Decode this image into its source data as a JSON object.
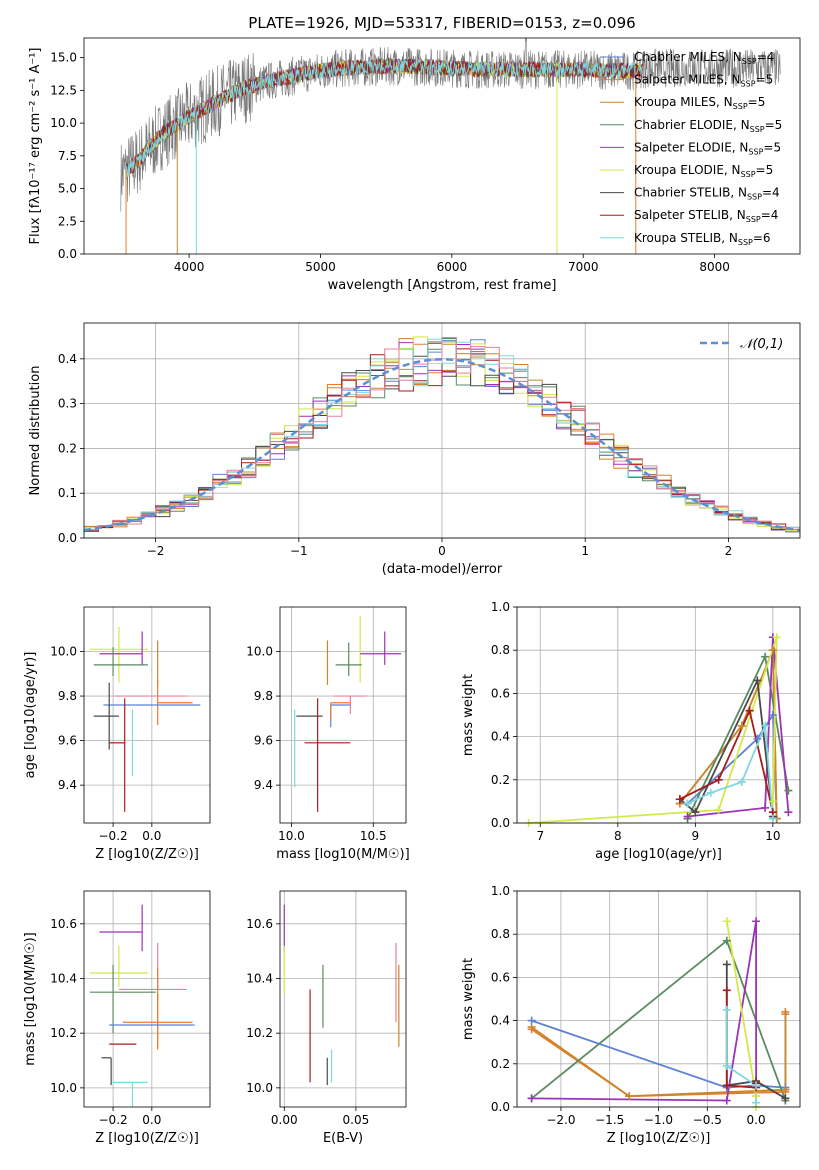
{
  "figure_title": "PLATE=1926, MJD=53317, FIBERID=0153, z=0.096",
  "colors": {
    "Chabrier MILES": "#5b82d8",
    "Salpeter MILES": "#ec7a2b",
    "Kroupa MILES": "#c8862e",
    "Chabrier ELODIE": "#5a8a60",
    "Salpeter ELODIE": "#9b34b6",
    "Kroupa ELODIE": "#d4e84a",
    "Chabrier STELIB": "#4a4a4a",
    "Salpeter STELIB": "#a61c1c",
    "Kroupa STELIB": "#7fd8e0",
    "Salpeter STELIB hist": "#e8809a",
    "normal_curve": "#5b8fd6"
  },
  "chart_data": [
    {
      "id": "spectrum",
      "type": "line",
      "title": "PLATE=1926, MJD=53317, FIBERID=0153, z=0.096",
      "xlabel": "wavelength [Angstrom, rest frame]",
      "ylabel": "Flux [fλ10⁻¹⁷ erg cm⁻² s⁻¹ A⁻¹]",
      "xlim": [
        3200,
        8650
      ],
      "ylim": [
        0,
        16.5
      ],
      "xticks": [
        4000,
        5000,
        6000,
        7000,
        8000
      ],
      "yticks": [
        0.0,
        2.5,
        5.0,
        7.5,
        10.0,
        12.5,
        15.0
      ],
      "legend_position": "right",
      "legend": [
        "Chabrier MILES, NSSP=4",
        "Salpeter MILES, NSSP=5",
        "Kroupa MILES, NSSP=5",
        "Chabrier ELODIE, NSSP=5",
        "Salpeter ELODIE, NSSP=5",
        "Kroupa ELODIE, NSSP=5",
        "Chabrier STELIB, NSSP=4",
        "Salpeter STELIB, NSSP=4",
        "Kroupa STELIB, NSSP=6"
      ],
      "continuum": {
        "x": [
          3480,
          3600,
          3800,
          4000,
          4200,
          4400,
          4600,
          4800,
          5000,
          5200,
          5400,
          5600,
          5800,
          6000,
          6200,
          6400,
          6600,
          6800,
          7000,
          7200,
          7400,
          7500
        ],
        "y": [
          6.0,
          7.0,
          9.2,
          10.5,
          11.6,
          12.6,
          13.2,
          13.6,
          14.0,
          14.2,
          14.3,
          14.35,
          14.3,
          14.2,
          14.1,
          14.1,
          14.1,
          14.1,
          14.1,
          14.0,
          14.0,
          14.2
        ]
      },
      "data_x_range": [
        3480,
        8500
      ],
      "model_x_range": [
        3520,
        7450
      ],
      "grid": false
    },
    {
      "id": "residuals",
      "type": "histogram",
      "xlabel": "(data-model)/error",
      "ylabel": "Normed distribution",
      "xlim": [
        -2.5,
        2.5
      ],
      "ylim": [
        0,
        0.48
      ],
      "xticks": [
        -2,
        -1,
        0,
        1,
        2
      ],
      "yticks": [
        0.0,
        0.1,
        0.2,
        0.3,
        0.4
      ],
      "bin_width": 0.1,
      "legend": [
        "𝒩(0,1)"
      ],
      "legend_position": "top-right",
      "grid": true
    },
    {
      "id": "age_vs_Z",
      "type": "scatter",
      "xlabel": "Z [log10(Z/Z☉)]",
      "ylabel": "age  [log10(age/yr)]",
      "xlim": [
        -0.35,
        0.3
      ],
      "ylim": [
        9.23,
        10.2
      ],
      "xticks": [
        -0.2,
        0.0
      ],
      "yticks": [
        9.4,
        9.6,
        9.8,
        10.0
      ],
      "grid": true,
      "points": [
        {
          "series": "Kroupa ELODIE",
          "x": -0.17,
          "y": 10.01,
          "xerr": [
            0.15,
            0.15
          ],
          "yerr": [
            0.15,
            0.1
          ]
        },
        {
          "series": "Salpeter ELODIE",
          "x": -0.05,
          "y": 9.99,
          "xerr": [
            0.22,
            0.0
          ],
          "yerr": [
            0.05,
            0.1
          ]
        },
        {
          "series": "Chabrier ELODIE",
          "x": -0.2,
          "y": 9.94,
          "xerr": [
            0.1,
            0.18
          ],
          "yerr": [
            0.05,
            0.08
          ]
        },
        {
          "series": "Kroupa MILES",
          "x": 0.03,
          "y": 9.95,
          "xerr": [
            0.0,
            0.0
          ],
          "yerr": [
            0.1,
            0.1
          ]
        },
        {
          "series": "Salpeter MILES",
          "x": 0.03,
          "y": 9.77,
          "xerr": [
            0.0,
            0.18
          ],
          "yerr": [
            0.1,
            0.1
          ]
        },
        {
          "series": "Salpeter STELIB hist",
          "x": 0.03,
          "y": 9.8,
          "xerr": [
            0.22,
            0.15
          ],
          "yerr": [
            0.0,
            0.0
          ]
        },
        {
          "series": "Chabrier MILES",
          "x": 0.0,
          "y": 9.76,
          "xerr": [
            0.25,
            0.25
          ],
          "yerr": [
            0.0,
            0.0
          ]
        },
        {
          "series": "Chabrier STELIB",
          "x": -0.22,
          "y": 9.71,
          "xerr": [
            0.08,
            0.05
          ],
          "yerr": [
            0.15,
            0.15
          ]
        },
        {
          "series": "Kroupa STELIB",
          "x": -0.1,
          "y": 9.59,
          "xerr": [
            0.0,
            0.0
          ],
          "yerr": [
            0.15,
            0.15
          ]
        },
        {
          "series": "Salpeter STELIB",
          "x": -0.14,
          "y": 9.59,
          "xerr": [
            0.08,
            0.0
          ],
          "yerr": [
            0.31,
            0.2
          ]
        }
      ]
    },
    {
      "id": "age_vs_mass",
      "type": "scatter",
      "xlabel": "mass [log10(M/M☉)]",
      "ylabel": "",
      "xlim": [
        9.93,
        10.7
      ],
      "ylim": [
        9.23,
        10.2
      ],
      "xticks": [
        10.0,
        10.5
      ],
      "yticks": [
        9.4,
        9.6,
        9.8,
        10.0
      ],
      "grid": true,
      "points": [
        {
          "series": "Kroupa ELODIE",
          "x": 10.42,
          "y": 10.01,
          "xerr": [
            0.0,
            0.0
          ],
          "yerr": [
            0.15,
            0.15
          ]
        },
        {
          "series": "Salpeter ELODIE",
          "x": 10.57,
          "y": 9.99,
          "xerr": [
            0.15,
            0.1
          ],
          "yerr": [
            0.05,
            0.1
          ]
        },
        {
          "series": "Chabrier ELODIE",
          "x": 10.35,
          "y": 9.94,
          "xerr": [
            0.08,
            0.08
          ],
          "yerr": [
            0.05,
            0.1
          ]
        },
        {
          "series": "Kroupa MILES",
          "x": 10.22,
          "y": 9.95,
          "xerr": [
            0.0,
            0.0
          ],
          "yerr": [
            0.1,
            0.1
          ]
        },
        {
          "series": "Salpeter STELIB hist",
          "x": 10.36,
          "y": 9.8,
          "xerr": [
            0.1,
            0.1
          ],
          "yerr": [
            0.08,
            0.0
          ]
        },
        {
          "series": "Chabrier MILES",
          "x": 10.24,
          "y": 9.76,
          "xerr": [
            0.0,
            0.12
          ],
          "yerr": [
            0.1,
            0.0
          ]
        },
        {
          "series": "Salpeter MILES",
          "x": 10.24,
          "y": 9.77,
          "xerr": [
            0.0,
            0.12
          ],
          "yerr": [
            0.08,
            0.0
          ]
        },
        {
          "series": "Chabrier STELIB",
          "x": 10.11,
          "y": 9.71,
          "xerr": [
            0.08,
            0.08
          ],
          "yerr": [
            0.0,
            0.0
          ]
        },
        {
          "series": "Kroupa STELIB",
          "x": 10.02,
          "y": 9.59,
          "xerr": [
            0.0,
            0.0
          ],
          "yerr": [
            0.2,
            0.15
          ]
        },
        {
          "series": "Salpeter STELIB",
          "x": 10.16,
          "y": 9.59,
          "xerr": [
            0.08,
            0.2
          ],
          "yerr": [
            0.31,
            0.2
          ]
        }
      ]
    },
    {
      "id": "weight_vs_age",
      "type": "line",
      "xlabel": "age  [log10(age/yr)]",
      "ylabel": "mass weight",
      "xlim": [
        6.7,
        10.35
      ],
      "ylim": [
        0,
        1.0
      ],
      "xticks": [
        7,
        8,
        9,
        10
      ],
      "yticks": [
        0.0,
        0.2,
        0.4,
        0.6,
        0.8,
        1.0
      ],
      "grid": true,
      "series": [
        {
          "series": "Chabrier MILES",
          "x": [
            8.9,
            9.8,
            10.0,
            10.05
          ],
          "y": [
            0.09,
            0.39,
            0.5,
            0.02
          ]
        },
        {
          "series": "Salpeter MILES",
          "x": [
            8.8,
            9.6,
            10.0,
            10.05
          ],
          "y": [
            0.09,
            0.45,
            0.8,
            0.02
          ]
        },
        {
          "series": "Kroupa MILES",
          "x": [
            8.8,
            9.6,
            10.0,
            10.05
          ],
          "y": [
            0.09,
            0.45,
            0.8,
            0.02
          ]
        },
        {
          "series": "Chabrier ELODIE",
          "x": [
            8.9,
            9.9,
            10.2
          ],
          "y": [
            0.02,
            0.77,
            0.15
          ]
        },
        {
          "series": "Salpeter ELODIE",
          "x": [
            8.9,
            9.9,
            10.0,
            10.2
          ],
          "y": [
            0.03,
            0.07,
            0.86,
            0.05
          ]
        },
        {
          "series": "Kroupa ELODIE",
          "x": [
            6.85,
            9.3,
            10.05,
            10.0
          ],
          "y": [
            0.0,
            0.06,
            0.86,
            0.1
          ]
        },
        {
          "series": "Chabrier STELIB",
          "x": [
            8.8,
            9.0,
            9.8,
            10.0
          ],
          "y": [
            0.11,
            0.05,
            0.66,
            0.03
          ]
        },
        {
          "series": "Salpeter STELIB",
          "x": [
            8.8,
            9.3,
            9.7,
            10.0
          ],
          "y": [
            0.11,
            0.2,
            0.52,
            0.05
          ]
        },
        {
          "series": "Kroupa STELIB",
          "x": [
            8.9,
            9.2,
            9.6,
            9.9,
            10.0
          ],
          "y": [
            0.09,
            0.14,
            0.19,
            0.45,
            0.02
          ]
        }
      ]
    },
    {
      "id": "mass_vs_Z",
      "type": "scatter",
      "xlabel": "Z [log10(Z/Z☉)]",
      "ylabel": "mass [log10(M/M☉)]",
      "xlim": [
        -0.35,
        0.3
      ],
      "ylim": [
        9.93,
        10.72
      ],
      "xticks": [
        -0.2,
        0.0
      ],
      "yticks": [
        10.0,
        10.2,
        10.4,
        10.6
      ],
      "grid": true,
      "points": [
        {
          "series": "Salpeter ELODIE",
          "x": -0.05,
          "y": 10.57,
          "xerr": [
            0.22,
            0.0
          ],
          "yerr": [
            0.07,
            0.1
          ]
        },
        {
          "series": "Salpeter STELIB hist",
          "x": 0.03,
          "y": 10.36,
          "xerr": [
            0.2,
            0.15
          ],
          "yerr": [
            0.0,
            0.17
          ]
        },
        {
          "series": "Kroupa ELODIE",
          "x": -0.17,
          "y": 10.42,
          "xerr": [
            0.15,
            0.15
          ],
          "yerr": [
            0.05,
            0.1
          ]
        },
        {
          "series": "Chabrier ELODIE",
          "x": -0.2,
          "y": 10.35,
          "xerr": [
            0.12,
            0.22
          ],
          "yerr": [
            0.15,
            0.1
          ]
        },
        {
          "series": "Kroupa MILES",
          "x": 0.03,
          "y": 10.35,
          "xerr": [
            0.0,
            0.0
          ],
          "yerr": [
            0.2,
            0.0
          ]
        },
        {
          "series": "Salpeter MILES",
          "x": 0.03,
          "y": 10.24,
          "xerr": [
            0.18,
            0.18
          ],
          "yerr": [
            0.1,
            0.2
          ]
        },
        {
          "series": "Chabrier MILES",
          "x": 0.0,
          "y": 10.23,
          "xerr": [
            0.22,
            0.22
          ],
          "yerr": [
            0.0,
            0.0
          ]
        },
        {
          "series": "Salpeter STELIB",
          "x": -0.14,
          "y": 10.16,
          "xerr": [
            0.08,
            0.06
          ],
          "yerr": [
            0.0,
            0.0
          ]
        },
        {
          "series": "Chabrier STELIB",
          "x": -0.21,
          "y": 10.11,
          "xerr": [
            0.05,
            0.0
          ],
          "yerr": [
            0.1,
            0.0
          ]
        },
        {
          "series": "Kroupa STELIB",
          "x": -0.1,
          "y": 10.02,
          "xerr": [
            0.1,
            0.08
          ],
          "yerr": [
            0.2,
            0.0
          ]
        }
      ]
    },
    {
      "id": "mass_vs_EBV",
      "type": "scatter",
      "xlabel": "E(B-V)",
      "ylabel": "",
      "xlim": [
        -0.003,
        0.085
      ],
      "ylim": [
        9.93,
        10.72
      ],
      "xticks": [
        0.0,
        0.05
      ],
      "yticks": [
        10.0,
        10.2,
        10.4,
        10.6
      ],
      "grid": true,
      "points": [
        {
          "series": "Salpeter ELODIE",
          "x": 0.0,
          "y": 10.57,
          "xerr": [
            0.0,
            0.0
          ],
          "yerr": [
            0.07,
            0.1
          ]
        },
        {
          "series": "Kroupa ELODIE",
          "x": 0.0,
          "y": 10.42,
          "xerr": [
            0.0,
            0.0
          ],
          "yerr": [
            0.08,
            0.1
          ]
        },
        {
          "series": "Salpeter STELIB hist",
          "x": 0.078,
          "y": 10.36,
          "xerr": [
            0.0,
            0.0
          ],
          "yerr": [
            0.12,
            0.17
          ]
        },
        {
          "series": "Kroupa MILES",
          "x": 0.08,
          "y": 10.35,
          "xerr": [
            0.0,
            0.0
          ],
          "yerr": [
            0.2,
            0.1
          ]
        },
        {
          "series": "Chabrier ELODIE",
          "x": 0.027,
          "y": 10.35,
          "xerr": [
            0.0,
            0.0
          ],
          "yerr": [
            0.13,
            0.1
          ]
        },
        {
          "series": "Chabrier STELIB",
          "x": 0.03,
          "y": 10.11,
          "xerr": [
            0.0,
            0.0
          ],
          "yerr": [
            0.1,
            0.0
          ]
        },
        {
          "series": "Salpeter STELIB",
          "x": 0.018,
          "y": 10.16,
          "xerr": [
            0.0,
            0.0
          ],
          "yerr": [
            0.14,
            0.2
          ]
        },
        {
          "series": "Kroupa STELIB",
          "x": 0.033,
          "y": 10.02,
          "xerr": [
            0.0,
            0.0
          ],
          "yerr": [
            0.0,
            0.12
          ]
        }
      ]
    },
    {
      "id": "weight_vs_Z",
      "type": "line",
      "xlabel": "Z [log10(Z/Z☉)]",
      "ylabel": "mass weight",
      "xlim": [
        -2.45,
        0.45
      ],
      "ylim": [
        0,
        1.0
      ],
      "xticks": [
        -2.0,
        -1.5,
        -1.0,
        -0.5,
        0.0
      ],
      "yticks": [
        0.0,
        0.2,
        0.4,
        0.6,
        0.8,
        1.0
      ],
      "grid": true,
      "series": [
        {
          "series": "Chabrier MILES",
          "x": [
            -2.3,
            -0.3,
            0.0,
            0.3
          ],
          "y": [
            0.4,
            0.09,
            0.1,
            0.09
          ]
        },
        {
          "series": "Salpeter MILES",
          "x": [
            -2.3,
            -1.3,
            0.3,
            0.3
          ],
          "y": [
            0.36,
            0.05,
            0.07,
            0.44
          ]
        },
        {
          "series": "Kroupa MILES",
          "x": [
            -2.3,
            -1.3,
            0.3,
            0.3
          ],
          "y": [
            0.37,
            0.05,
            0.08,
            0.43
          ]
        },
        {
          "series": "Chabrier ELODIE",
          "x": [
            -2.3,
            -0.3,
            0.3
          ],
          "y": [
            0.04,
            0.77,
            0.03
          ]
        },
        {
          "series": "Salpeter ELODIE",
          "x": [
            -2.3,
            -0.3,
            0.0,
            0.0
          ],
          "y": [
            0.04,
            0.03,
            0.86,
            0.05
          ]
        },
        {
          "series": "Kroupa ELODIE",
          "x": [
            -0.3,
            0.0,
            0.0
          ],
          "y": [
            0.86,
            0.05,
            0.0
          ]
        },
        {
          "series": "Chabrier STELIB",
          "x": [
            -0.3,
            -0.3,
            0.0,
            0.3
          ],
          "y": [
            0.66,
            0.1,
            0.12,
            0.04
          ]
        },
        {
          "series": "Salpeter STELIB",
          "x": [
            -0.3,
            -0.3,
            0.0,
            0.0
          ],
          "y": [
            0.54,
            0.1,
            0.09,
            0.11
          ]
        },
        {
          "series": "Kroupa STELIB",
          "x": [
            -0.3,
            -0.3,
            0.0,
            0.0
          ],
          "y": [
            0.45,
            0.19,
            0.1,
            0.02
          ]
        }
      ]
    }
  ]
}
